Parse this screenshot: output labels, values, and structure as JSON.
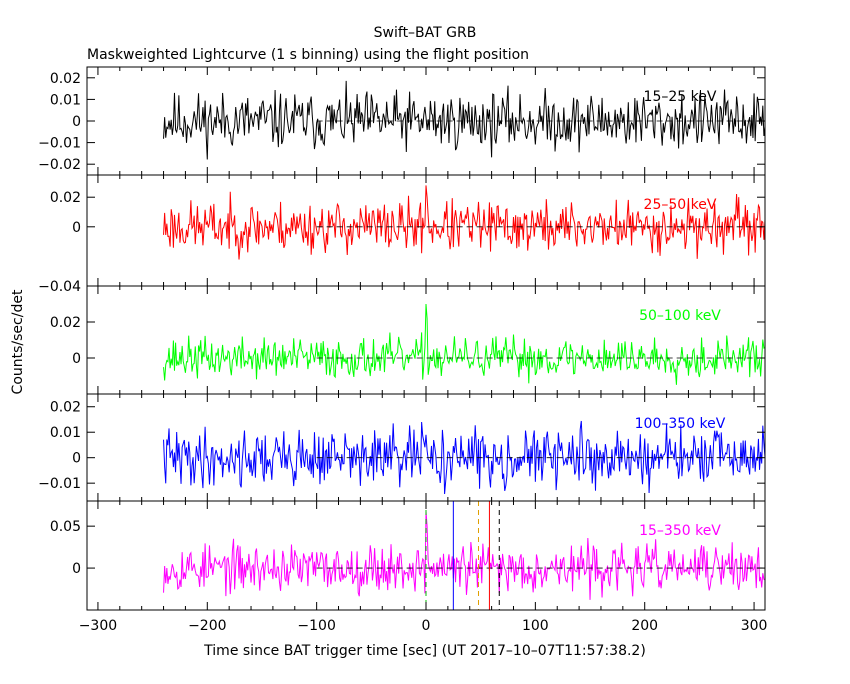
{
  "header": {
    "title": "Swift–BAT GRB",
    "subtitle": "Maskweighted Lightcurve (1 s binning) using the flight position"
  },
  "axes": {
    "xlabel": "Time since BAT trigger time [sec] (UT 2017–10–07T11:57:38.2)",
    "ylabel": "Counts/sec/det"
  },
  "chart_data": [
    {
      "type": "line",
      "title": "15–25 keV",
      "band": "15–25 keV",
      "color": "#000000",
      "xlim": [
        -310,
        310
      ],
      "ylim": [
        -0.025,
        0.025
      ],
      "yticks": [
        -0.02,
        -0.01,
        0,
        0.01,
        0.02
      ],
      "ytick_labels": [
        "−0.02",
        "−0.01",
        "0",
        "0.01",
        "0.02"
      ],
      "x_start": -240,
      "x_end": 310,
      "noise_sigma": 0.0065,
      "seed": 11,
      "peaks": []
    },
    {
      "type": "line",
      "title": "25–50 keV",
      "band": "25–50 keV",
      "color": "#ff0000",
      "xlim": [
        -310,
        310
      ],
      "ylim": [
        -0.04,
        0.035
      ],
      "yticks": [
        -0.04,
        0,
        0.02
      ],
      "ytick_labels": [
        "−0.04",
        "0",
        "0.02"
      ],
      "x_start": -240,
      "x_end": 310,
      "noise_sigma": 0.0085,
      "seed": 23,
      "peaks": [
        {
          "t": 0,
          "v": 0.028
        },
        {
          "t": 1,
          "v": 0.02
        }
      ]
    },
    {
      "type": "line",
      "title": "50–100 keV",
      "band": "50–100 keV",
      "color": "#00ff00",
      "xlim": [
        -310,
        310
      ],
      "ylim": [
        -0.02,
        0.04
      ],
      "yticks": [
        0,
        0.02
      ],
      "ytick_labels": [
        "0",
        "0.02"
      ],
      "x_start": -240,
      "x_end": 310,
      "noise_sigma": 0.0055,
      "seed": 37,
      "peaks": [
        {
          "t": 0,
          "v": 0.03
        },
        {
          "t": 1,
          "v": 0.022
        }
      ]
    },
    {
      "type": "line",
      "title": "100–350 keV",
      "band": "100–350 keV",
      "color": "#0000ff",
      "xlim": [
        -310,
        310
      ],
      "ylim": [
        -0.017,
        0.025
      ],
      "yticks": [
        -0.01,
        0,
        0.01,
        0.02
      ],
      "ytick_labels": [
        "−0.01",
        "0",
        "0.01",
        "0.02"
      ],
      "x_start": -240,
      "x_end": 310,
      "noise_sigma": 0.0055,
      "seed": 41,
      "peaks": [
        {
          "t": -4,
          "v": 0.014
        }
      ]
    },
    {
      "type": "line",
      "title": "15–350 keV",
      "band": "15–350 keV",
      "color": "#ff00ff",
      "xlim": [
        -310,
        310
      ],
      "xticks": [
        -300,
        -200,
        -100,
        0,
        100,
        200,
        300
      ],
      "xtick_labels": [
        "−300",
        "−200",
        "−100",
        "0",
        "100",
        "200",
        "300"
      ],
      "ylim": [
        -0.05,
        0.08
      ],
      "yticks": [
        0,
        0.05
      ],
      "ytick_labels": [
        "0",
        "0.05"
      ],
      "x_start": -240,
      "x_end": 310,
      "noise_sigma": 0.014,
      "seed": 53,
      "peaks": [
        {
          "t": 0,
          "v": 0.068
        },
        {
          "t": 1,
          "v": 0.05
        }
      ],
      "markers": [
        {
          "t": 0,
          "color": "#00c000",
          "dash": true
        },
        {
          "t": 25,
          "color": "#0000ff",
          "dash": false
        },
        {
          "t": 48,
          "color": "#e0a000",
          "dash": true
        },
        {
          "t": 58,
          "color": "#ff0000",
          "dash": false
        },
        {
          "t": 67,
          "color": "#000000",
          "dash": true
        }
      ]
    }
  ]
}
